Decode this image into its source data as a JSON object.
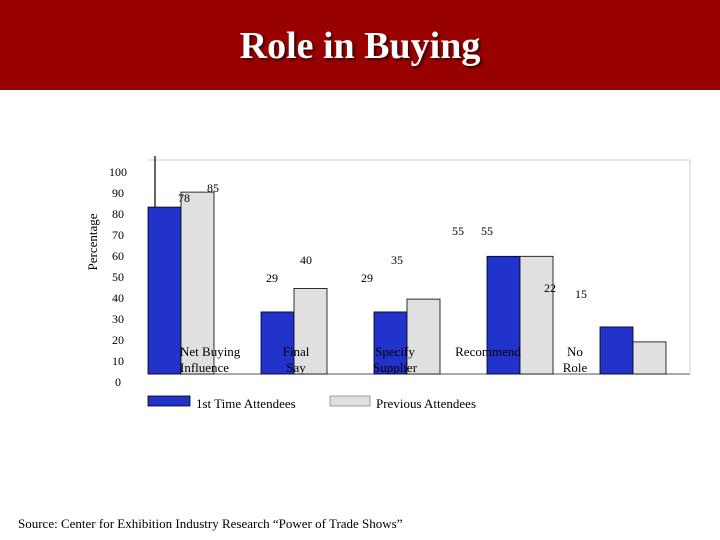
{
  "header": {
    "title": "Role in Buying"
  },
  "footer": {
    "source": "Source:  Center for Exhibition Industry Research “Power of Trade Shows”"
  },
  "colors": {
    "title_bar": "#990000",
    "series_1": "#2233cc",
    "series_2": "#e0e0e0"
  },
  "chart_data": {
    "type": "bar",
    "title": "Role in Buying",
    "xlabel": "",
    "ylabel": "Percentage",
    "ylim": [
      0,
      100
    ],
    "yticks": [
      "100",
      "90",
      "80",
      "70",
      "60",
      "50",
      "40",
      "30",
      "20",
      "10",
      "0"
    ],
    "categories": [
      {
        "lines": [
          "Net Buying",
          "Influence"
        ]
      },
      {
        "lines": [
          "Final",
          "Say"
        ]
      },
      {
        "lines": [
          "Specify",
          "Supplier"
        ]
      },
      {
        "lines": [
          "Recommend"
        ]
      },
      {
        "lines": [
          "No",
          "Role"
        ]
      }
    ],
    "series": [
      {
        "name": "1st Time Attendees",
        "color": "#2233cc",
        "values": [
          78,
          29,
          29,
          55,
          22
        ],
        "labels": [
          "78",
          "29",
          "29",
          "55",
          "22"
        ]
      },
      {
        "name": "Previous Attendees",
        "color": "#e0e0e0",
        "values": [
          85,
          40,
          35,
          55,
          15
        ],
        "labels": [
          "85",
          "40",
          "35",
          "55",
          "15"
        ]
      }
    ],
    "legend_position": "bottom",
    "grid": false
  }
}
